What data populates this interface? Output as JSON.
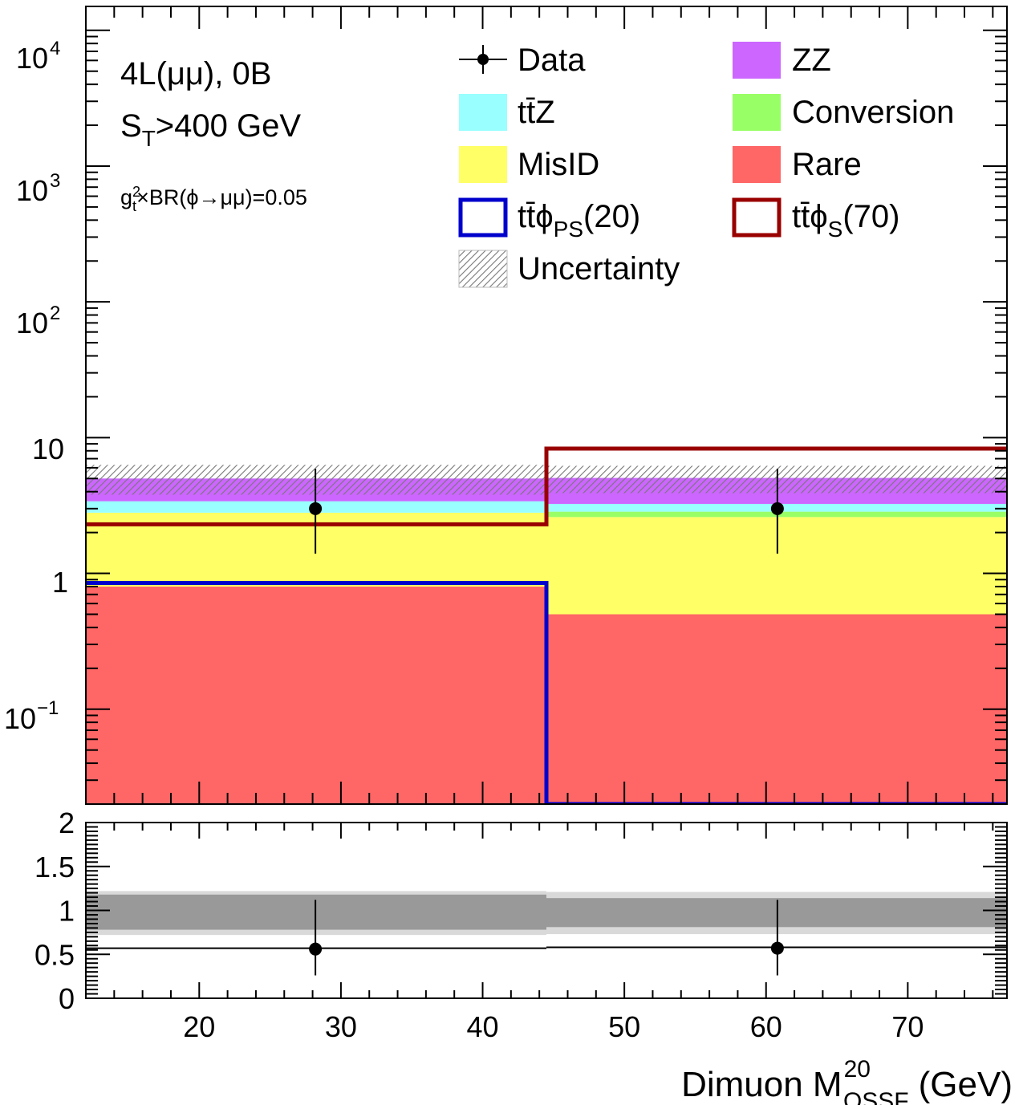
{
  "chart_data": [
    {
      "type": "bar",
      "panel": "main",
      "scale": "log",
      "stacked": true,
      "ylim": [
        0.02,
        15000
      ],
      "xlim": [
        12,
        77
      ],
      "bins": [
        [
          12,
          44.5
        ],
        [
          44.5,
          77
        ]
      ],
      "y_tick_labels": [
        "10",
        "1"
      ],
      "annotations": {
        "channel": "4L(μμ), 0B",
        "st_cut_prefix": "S",
        "st_cut_sub": "T",
        "st_cut_suffix": ">400 GeV",
        "coupling_g": "g",
        "coupling_sub": "t",
        "coupling_sup": "2",
        "coupling_rest": "×BR(ϕ→μμ)=0.05"
      },
      "legend": {
        "placement": "top-right",
        "entries": [
          {
            "key": "data",
            "label": "Data",
            "style": "marker"
          },
          {
            "key": "zz",
            "label": "ZZ",
            "style": "fill",
            "color": "#cc66ff"
          },
          {
            "key": "ttz",
            "label": "tt̄Z",
            "style": "fill",
            "color": "#99ffff"
          },
          {
            "key": "conversion",
            "label": "Conversion",
            "style": "fill",
            "color": "#99ff66"
          },
          {
            "key": "misid",
            "label": "MisID",
            "style": "fill",
            "color": "#ffff66"
          },
          {
            "key": "rare",
            "label": "Rare",
            "style": "fill",
            "color": "#ff6666"
          },
          {
            "key": "ttphi_ps",
            "label": "tt̄ϕ",
            "sub": "PS",
            "suffix": "(20)",
            "style": "line",
            "color": "#0000cc"
          },
          {
            "key": "ttphi_s",
            "label": "tt̄ϕ",
            "sub": "S",
            "suffix": "(70)",
            "style": "line",
            "color": "#990000"
          },
          {
            "key": "uncertainty",
            "label": "Uncertainty",
            "style": "hatch",
            "color": "#888888"
          }
        ]
      },
      "stack_order": [
        "rare",
        "misid",
        "conversion",
        "ttz",
        "zz"
      ],
      "series": [
        {
          "key": "rare",
          "name": "Rare",
          "values": [
            0.8,
            0.5
          ]
        },
        {
          "key": "misid",
          "name": "MisID",
          "values": [
            2.0,
            2.1
          ]
        },
        {
          "key": "conversion",
          "name": "Conversion",
          "values": [
            0.0,
            0.25
          ]
        },
        {
          "key": "ttz",
          "name": "tt̄Z",
          "values": [
            0.6,
            0.4
          ]
        },
        {
          "key": "zz",
          "name": "ZZ",
          "values": [
            1.6,
            1.8
          ]
        }
      ],
      "uncertainty_band": {
        "low": [
          3.8,
          3.9
        ],
        "high": [
          6.3,
          6.2
        ]
      },
      "signals": [
        {
          "key": "ttphi_ps",
          "name": "tt̄ϕPS(20)",
          "values": [
            0.85,
            0.02
          ]
        },
        {
          "key": "ttphi_s",
          "name": "tt̄ϕS(70)",
          "values": [
            2.3,
            8.3
          ]
        }
      ],
      "data_points": [
        {
          "x": 28.2,
          "y": 3.0,
          "y_low": 1.4,
          "y_high": 5.9
        },
        {
          "x": 60.8,
          "y": 3.0,
          "y_low": 1.4,
          "y_high": 5.9
        }
      ]
    },
    {
      "type": "scatter",
      "panel": "ratio",
      "ylim": [
        0,
        2
      ],
      "xlim": [
        12,
        77
      ],
      "y_tick_labels": [
        "2",
        "1.5",
        "1",
        "0.5",
        "0"
      ],
      "x_tick_labels": [
        "20",
        "30",
        "40",
        "50",
        "60",
        "70"
      ],
      "x_tick_values": [
        20,
        30,
        40,
        50,
        60,
        70
      ],
      "xlabel_main": "Dimuon M",
      "xlabel_sup": "20",
      "xlabel_sub": "OSSF",
      "xlabel_unit": "(GeV)",
      "bins": [
        [
          12,
          44.5
        ],
        [
          44.5,
          77
        ]
      ],
      "band_outer": {
        "low": [
          0.72,
          0.73
        ],
        "high": [
          1.22,
          1.21
        ]
      },
      "band_inner": {
        "low": [
          0.78,
          0.81
        ],
        "high": [
          1.18,
          1.14
        ]
      },
      "ratio_line": [
        0.57,
        0.58
      ],
      "points": [
        {
          "x": 28.2,
          "y": 0.56,
          "y_low": 0.26,
          "y_high": 1.12
        },
        {
          "x": 60.8,
          "y": 0.57,
          "y_low": 0.26,
          "y_high": 1.12
        }
      ]
    }
  ]
}
